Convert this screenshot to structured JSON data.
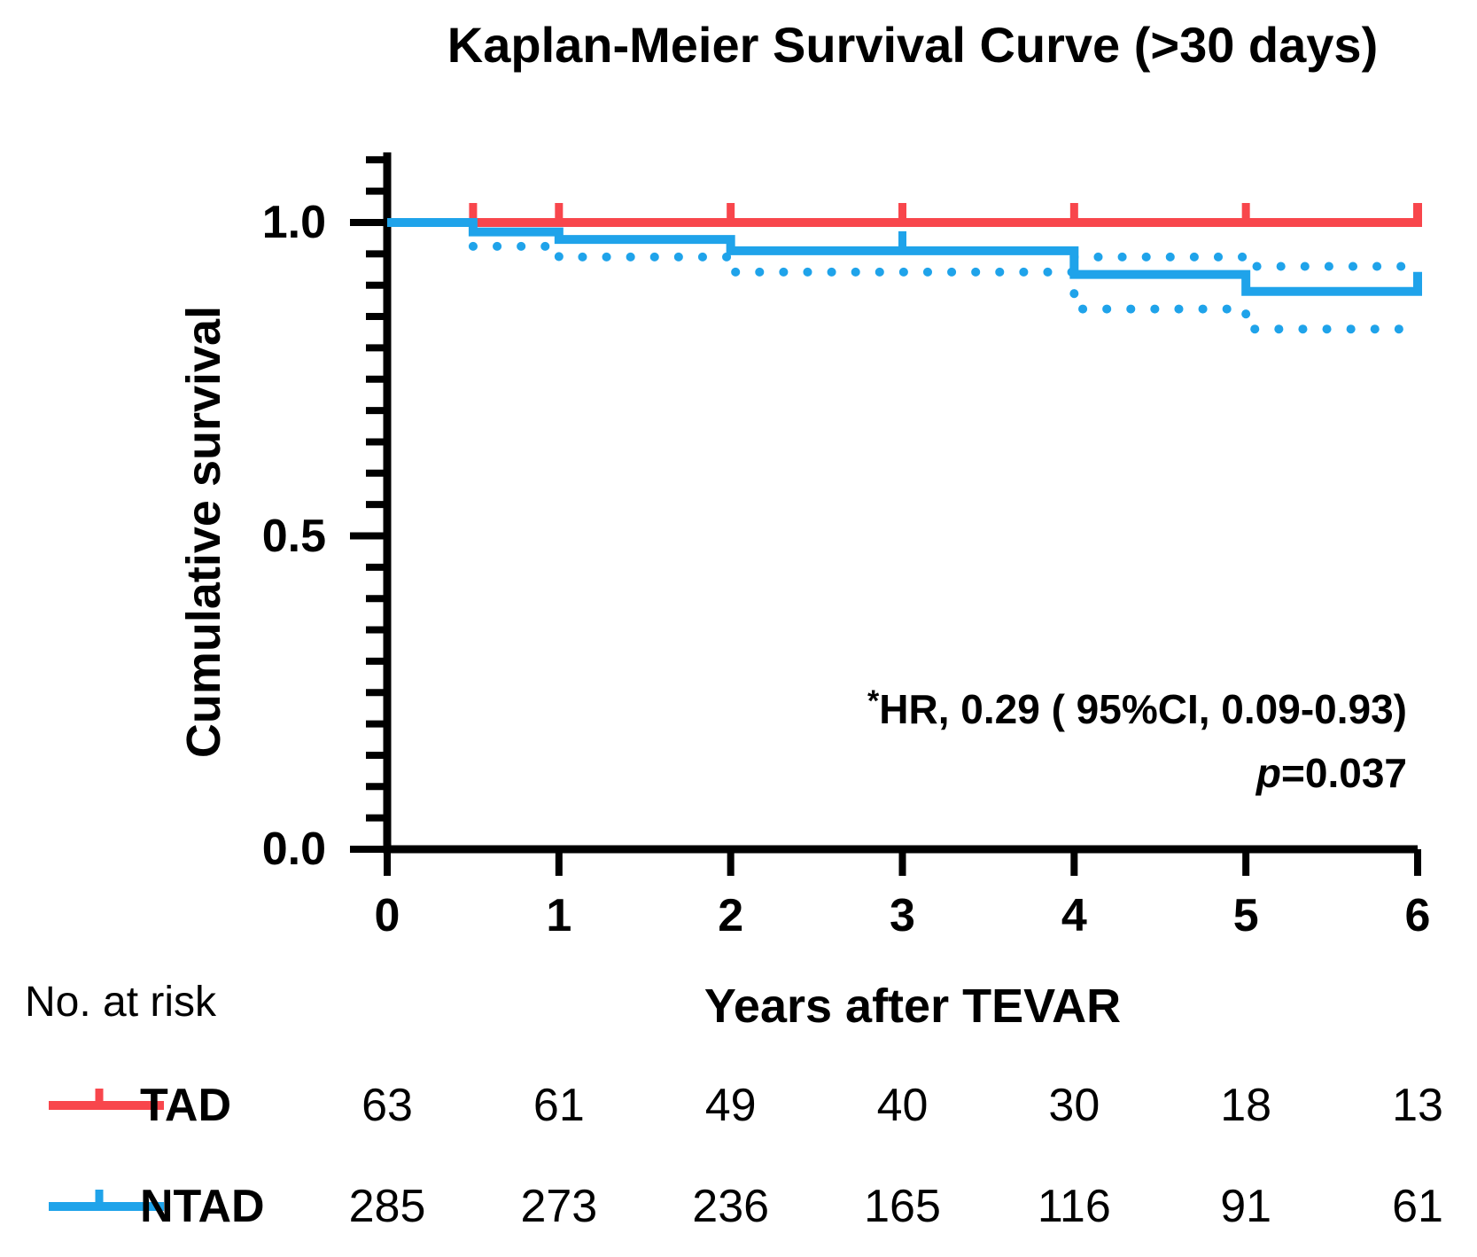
{
  "figure": {
    "annotation_star": "*",
    "annotation_line1": "HR, 0.29 ( 95%CI, 0.09-0.93)",
    "annotation_p_label": "p",
    "annotation_p_value": "=0.037"
  },
  "chart_data": {
    "type": "line",
    "subtype": "kaplan-meier-step-curve",
    "title": "Kaplan-Meier Survival Curve (>30 days)",
    "xlabel": "Years after TEVAR",
    "ylabel": "Cumulative survival",
    "xlim": [
      0,
      6
    ],
    "ylim": [
      0,
      1.1
    ],
    "grid": false,
    "x_ticks": [
      0,
      1,
      2,
      3,
      4,
      5,
      6
    ],
    "y_ticks": [
      {
        "label": "1.0",
        "value": 1.0
      },
      {
        "label": "0.5",
        "value": 0.5
      },
      {
        "label": "0.0",
        "value": 0.0
      }
    ],
    "y_minor_tick_step": 0.05,
    "colors": {
      "tad": "#F8464C",
      "ntad": "#1FA3EA",
      "axis": "#000000"
    },
    "series": [
      {
        "name": "TAD",
        "color_key": "tad",
        "style": "solid",
        "points": [
          [
            0,
            1.0
          ],
          [
            6,
            1.0
          ]
        ],
        "censor_marks": [
          0.5,
          1,
          2,
          3,
          4,
          5,
          6
        ],
        "end_cap": true
      },
      {
        "name": "NTAD",
        "color_key": "ntad",
        "style": "solid",
        "points": [
          [
            0,
            1.0
          ],
          [
            0.5,
            0.985
          ],
          [
            1,
            0.973
          ],
          [
            2,
            0.955
          ],
          [
            4,
            0.917
          ],
          [
            5,
            0.89
          ],
          [
            6,
            0.89
          ]
        ],
        "censor_marks": [
          3,
          6
        ],
        "end_cap": true
      },
      {
        "name": "NTAD 95% CI upper",
        "color_key": "ntad",
        "style": "dotted",
        "points": [
          [
            4,
            0.945
          ],
          [
            5,
            0.93
          ],
          [
            6,
            0.93
          ]
        ],
        "censor_marks": [],
        "end_cap": false
      },
      {
        "name": "NTAD 95% CI lower",
        "color_key": "ntad",
        "style": "dotted",
        "points": [
          [
            0.5,
            0.962
          ],
          [
            1,
            0.945
          ],
          [
            2,
            0.921
          ],
          [
            4,
            0.862
          ],
          [
            5,
            0.83
          ],
          [
            6,
            0.83
          ]
        ],
        "censor_marks": [],
        "end_cap": false
      }
    ],
    "annotation": [
      "*HR, 0.29 ( 95%CI, 0.09-0.93)",
      "p=0.037"
    ],
    "risk_table": {
      "label": "No. at risk",
      "time_points": [
        0,
        1,
        2,
        3,
        4,
        5,
        6
      ],
      "rows": [
        {
          "name": "TAD",
          "color_key": "tad",
          "values": [
            "63",
            "61",
            "49",
            "40",
            "30",
            "18",
            "13"
          ]
        },
        {
          "name": "NTAD",
          "color_key": "ntad",
          "values": [
            "285",
            "273",
            "236",
            "165",
            "116",
            "91",
            "61"
          ]
        }
      ]
    }
  }
}
